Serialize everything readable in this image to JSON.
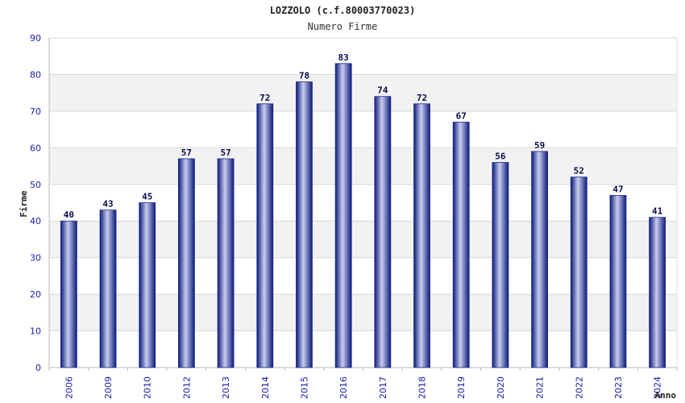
{
  "chart_data": {
    "type": "bar",
    "title": "LOZZOLO (c.f.80003770023)",
    "subtitle": "Numero Firme",
    "xlabel": "Anno",
    "ylabel": "Firme",
    "ylim": [
      0,
      90
    ],
    "yticks": [
      0,
      10,
      20,
      30,
      40,
      50,
      60,
      70,
      80,
      90
    ],
    "categories": [
      "2006",
      "2009",
      "2010",
      "2012",
      "2013",
      "2014",
      "2015",
      "2016",
      "2017",
      "2018",
      "2019",
      "2020",
      "2021",
      "2022",
      "2023",
      "2024"
    ],
    "values": [
      40,
      43,
      45,
      57,
      57,
      72,
      78,
      83,
      74,
      72,
      67,
      56,
      59,
      52,
      47,
      41
    ],
    "grid": true,
    "bar_color": "#1a2a8c",
    "tick_color": "#1a1aa8"
  }
}
